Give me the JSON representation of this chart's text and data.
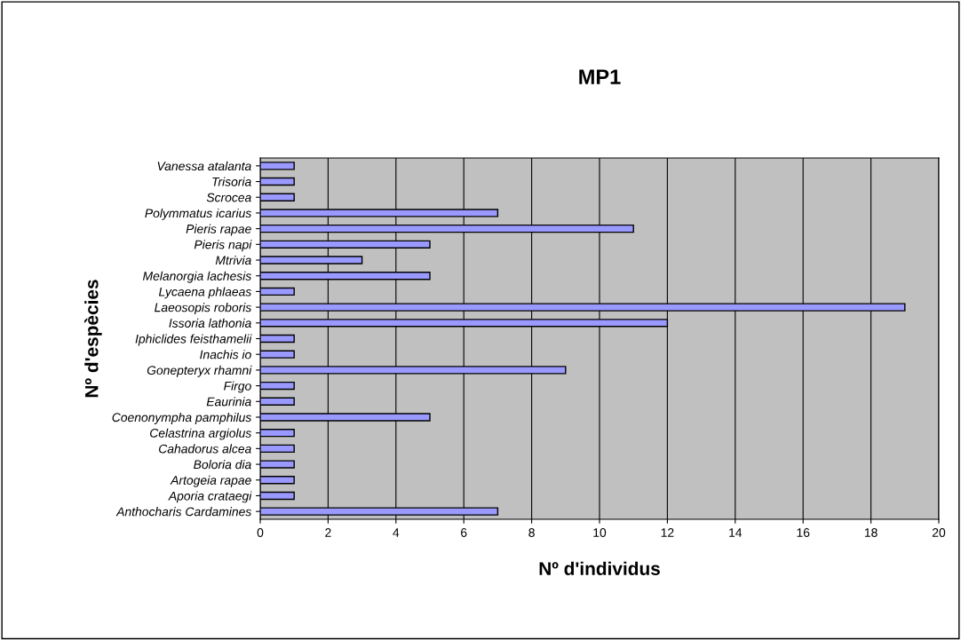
{
  "chart_data": {
    "type": "bar",
    "orientation": "horizontal",
    "title": "MP1",
    "xlabel": "Nº d'individus",
    "ylabel": "Nº d'espècies",
    "categories": [
      "Vanessa atalanta",
      "Trisoria",
      "Scrocea",
      "Polymmatus icarius",
      "Pieris rapae",
      "Pieris napi",
      "Mtrivia",
      "Melanorgia lachesis",
      "Lycaena phlaeas",
      "Laeosopis roboris",
      "Issoria lathonia",
      "Iphiclides feisthamelii",
      "Inachis io",
      "Gonepteryx rhamni",
      "Firgo",
      "Eaurinia",
      "Coenonympha pamphilus",
      "Celastrina argiolus",
      "Cahadorus alcea",
      "Boloria dia",
      "Artogeia rapae",
      "Aporia crataegi",
      "Anthocharis Cardamines"
    ],
    "values": [
      1,
      1,
      1,
      7,
      11,
      5,
      3,
      5,
      1,
      19,
      12,
      1,
      1,
      9,
      1,
      1,
      5,
      1,
      1,
      1,
      1,
      1,
      7
    ],
    "color": "#9999ff",
    "xlim": [
      0,
      20
    ],
    "xticks": [
      0,
      2,
      4,
      6,
      8,
      10,
      12,
      14,
      16,
      18,
      20
    ],
    "grid": "x",
    "legend": false
  }
}
